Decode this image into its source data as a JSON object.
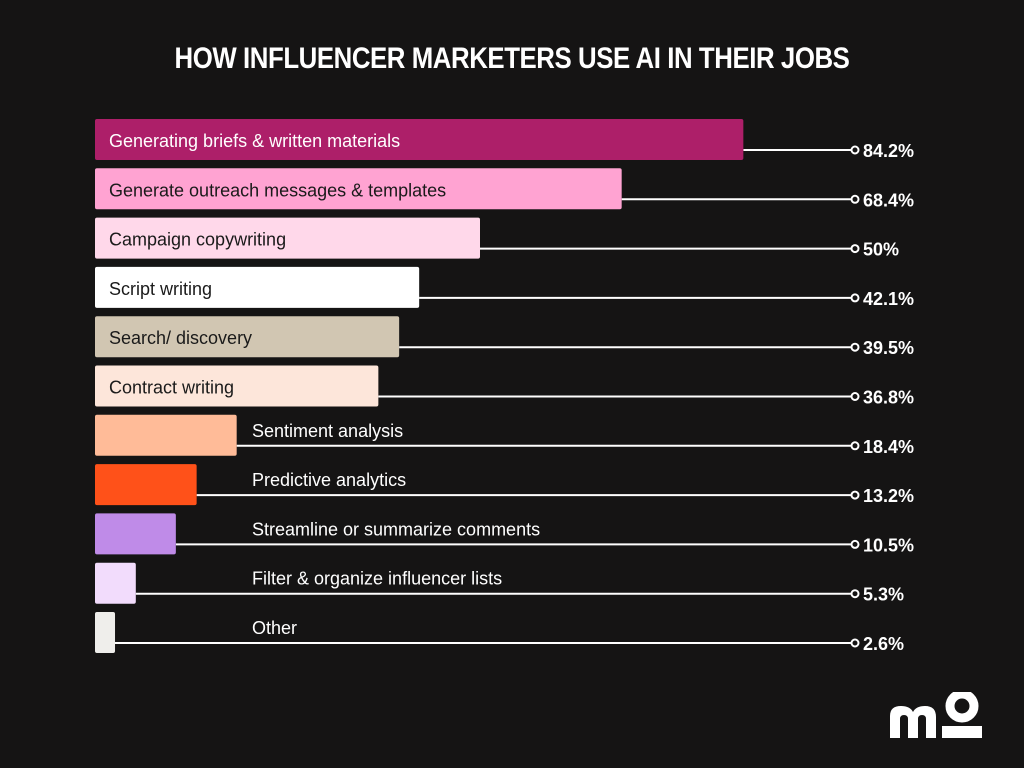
{
  "chart_data": {
    "type": "bar",
    "orientation": "horizontal",
    "title": "HOW INFLUENCER MARKETERS USE AI IN THEIR JOBS",
    "unit": "%",
    "xlim": [
      0,
      100
    ],
    "xlabel": "",
    "ylabel": "",
    "grid": false,
    "legend": "none",
    "categories": [
      "Generating briefs & written materials",
      "Generate outreach messages & templates",
      "Campaign copywriting",
      "Script writing",
      "Search/ discovery",
      "Contract writing",
      "Sentiment analysis",
      "Predictive analytics",
      "Streamline or summarize comments",
      "Filter & organize influencer lists",
      "Other"
    ],
    "values": [
      84.2,
      68.4,
      50,
      42.1,
      39.5,
      36.8,
      18.4,
      13.2,
      10.5,
      5.3,
      2.6
    ],
    "value_labels": [
      "84.2%",
      "68.4%",
      "50%",
      "42.1%",
      "39.5%",
      "36.8%",
      "18.4%",
      "13.2%",
      "10.5%",
      "5.3%",
      "2.6%"
    ],
    "bar_colors": [
      "#ad1f69",
      "#ffa3d2",
      "#ffd8ea",
      "#ffffff",
      "#d1c6b2",
      "#fde6da",
      "#ffbb98",
      "#ff5119",
      "#bf8be8",
      "#f2dcfc",
      "#efeeeb"
    ],
    "label_colors": [
      "#ffffff",
      "#1a1a1a",
      "#1a1a1a",
      "#1a1a1a",
      "#1a1a1a",
      "#1a1a1a",
      "#ffffff",
      "#ffffff",
      "#ffffff",
      "#ffffff",
      "#ffffff"
    ],
    "label_inside": [
      true,
      true,
      true,
      true,
      true,
      true,
      false,
      false,
      false,
      false,
      false
    ]
  },
  "brand": {
    "logo_icon": "mo-logo-icon",
    "color": "#ffffff"
  },
  "colors": {
    "background": "#151414",
    "leader_line": "#ffffff"
  }
}
